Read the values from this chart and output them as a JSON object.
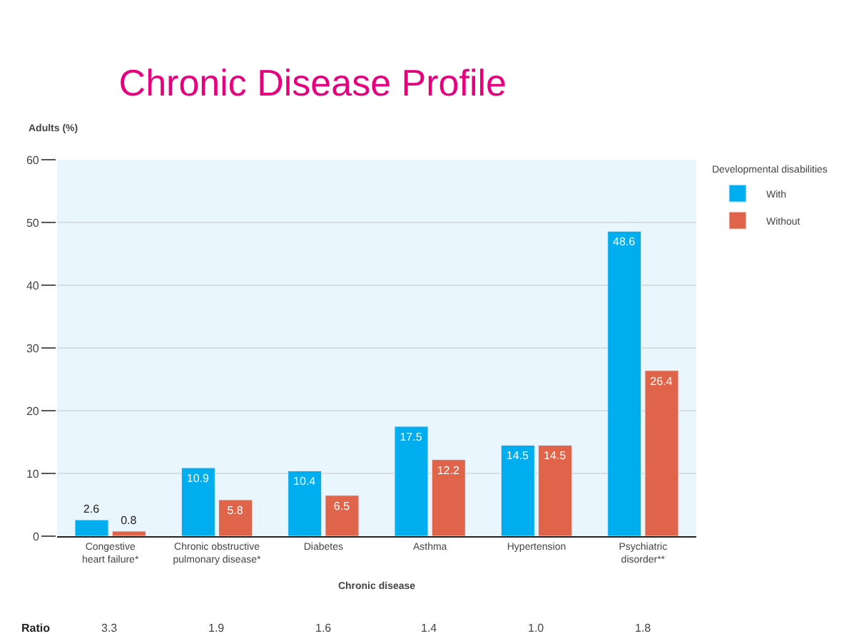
{
  "chart_data": {
    "type": "bar",
    "title": "Chronic Disease Profile",
    "ylabel": "Adults (%)",
    "xlabel": "Chronic disease",
    "legend_title": "Developmental disabilities",
    "categories": [
      "Congestive\nheart failure*",
      "Chronic obstructive\npulmonary disease*",
      "Diabetes",
      "Asthma",
      "Hypertension",
      "Psychiatric\ndisorder**"
    ],
    "series": [
      {
        "name": "With",
        "color": "#00aeef",
        "values": [
          2.6,
          10.9,
          10.4,
          17.5,
          14.5,
          48.6
        ]
      },
      {
        "name": "Without",
        "color": "#e0644a",
        "values": [
          0.8,
          5.8,
          6.5,
          12.2,
          14.5,
          26.4
        ]
      }
    ],
    "ylim": [
      0,
      60
    ],
    "yticks": [
      0,
      10,
      20,
      30,
      40,
      50,
      60
    ],
    "grid": "y",
    "legend": "top right",
    "data_labels": true,
    "annotations": [
      "Ratio",
      "3.3",
      "1.9",
      "1.6",
      "1.4",
      "1.0",
      "1.8"
    ]
  }
}
